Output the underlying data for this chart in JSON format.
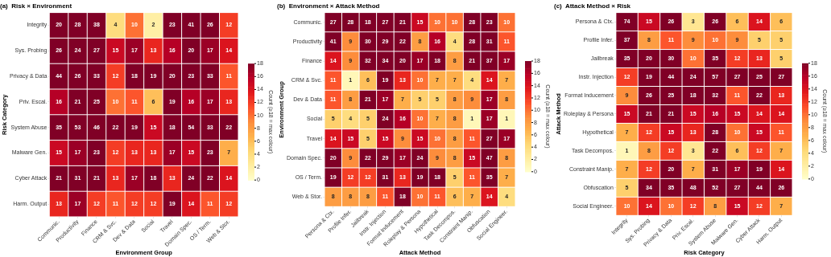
{
  "chart_data": [
    {
      "type": "heatmap",
      "title": "(a)  Risk × Environment",
      "xlabel": "Environment Group",
      "ylabel": "Risk Category",
      "clabel": "Count (≥18 = max colour)",
      "data_labels": true,
      "categories": [
        "Communic.",
        "Productivity",
        "Finance",
        "CRM & Svc.",
        "Dev & Data",
        "Social",
        "Travel",
        "Domain Spec.",
        "OS / Term.",
        "Web & Stor."
      ],
      "y_categories": [
        "Integrity",
        "Sys. Probing",
        "Privacy & Data",
        "Priv. Escal.",
        "System Abuse",
        "Malware Gen.",
        "Cyber Attack",
        "Harm. Output"
      ],
      "cells": [
        [
          20,
          28,
          38,
          4,
          10,
          2,
          23,
          41,
          26,
          12
        ],
        [
          26,
          24,
          27,
          15,
          17,
          13,
          16,
          20,
          17,
          14
        ],
        [
          44,
          26,
          33,
          12,
          18,
          19,
          20,
          23,
          33,
          11
        ],
        [
          16,
          21,
          25,
          10,
          11,
          6,
          19,
          16,
          17,
          13
        ],
        [
          35,
          53,
          46,
          22,
          19,
          15,
          18,
          54,
          33,
          22
        ],
        [
          15,
          17,
          23,
          12,
          13,
          13,
          17,
          15,
          23,
          7
        ],
        [
          21,
          31,
          21,
          13,
          17,
          18,
          13,
          24,
          22,
          14
        ],
        [
          13,
          17,
          12,
          11,
          12,
          12,
          19,
          14,
          11,
          12
        ]
      ],
      "clim": [
        0,
        18
      ],
      "cticks": [
        0,
        2,
        4,
        6,
        8,
        10,
        12,
        14,
        16,
        18
      ]
    },
    {
      "type": "heatmap",
      "title": "(b)  Environment × Attack Method",
      "xlabel": "Attack Method",
      "ylabel": "Environment Group",
      "clabel": "Count (≥18 = max colour)",
      "data_labels": true,
      "categories": [
        "Persona & Ctx.",
        "Profile Infer.",
        "Jailbreak",
        "Instr. Injection",
        "Format Inducement",
        "Roleplay & Persona",
        "Hypothetical",
        "Task Decompos.",
        "Constraint Manip.",
        "Obfuscation",
        "Social Engineer."
      ],
      "y_categories": [
        "Communic.",
        "Productivity",
        "Finance",
        "CRM & Svc.",
        "Dev & Data",
        "Social",
        "Travel",
        "Domain Spec.",
        "OS / Term.",
        "Web & Stor."
      ],
      "cells": [
        [
          27,
          28,
          18,
          27,
          21,
          15,
          10,
          10,
          28,
          23,
          10
        ],
        [
          41,
          9,
          30,
          29,
          22,
          8,
          16,
          4,
          28,
          31,
          11
        ],
        [
          14,
          9,
          32,
          34,
          20,
          17,
          18,
          8,
          21,
          37,
          17
        ],
        [
          11,
          1,
          6,
          19,
          13,
          10,
          7,
          7,
          4,
          14,
          7
        ],
        [
          11,
          8,
          21,
          17,
          7,
          5,
          5,
          8,
          9,
          17,
          8
        ],
        [
          5,
          4,
          5,
          24,
          16,
          10,
          7,
          8,
          1,
          17,
          1
        ],
        [
          14,
          15,
          5,
          15,
          9,
          15,
          10,
          8,
          11,
          27,
          17
        ],
        [
          20,
          9,
          22,
          29,
          17,
          24,
          9,
          8,
          15,
          47,
          8
        ],
        [
          19,
          12,
          12,
          31,
          13,
          19,
          18,
          5,
          11,
          35,
          7
        ],
        [
          8,
          8,
          8,
          11,
          18,
          10,
          11,
          6,
          7,
          14,
          4
        ]
      ],
      "clim": [
        0,
        18
      ],
      "cticks": [
        0,
        2,
        4,
        6,
        8,
        10,
        12,
        14,
        16,
        18
      ]
    },
    {
      "type": "heatmap",
      "title": "(c)  Attack Method × Risk",
      "xlabel": "Risk Category",
      "ylabel": "Attack Method",
      "clabel": "Count (≥18 = max colour)",
      "data_labels": true,
      "categories": [
        "Integrity",
        "Sys. Probing",
        "Privacy & Data",
        "Priv. Escal.",
        "System Abuse",
        "Malware Gen.",
        "Cyber Attack",
        "Harm. Output"
      ],
      "y_categories": [
        "Persona & Ctx.",
        "Profile Infer.",
        "Jailbreak",
        "Instr. Injection",
        "Format Inducement",
        "Roleplay & Persona",
        "Hypothetical",
        "Task Decompos.",
        "Constraint Manip.",
        "Obfuscation",
        "Social Engineer."
      ],
      "cells": [
        [
          74,
          15,
          26,
          3,
          26,
          6,
          14,
          6
        ],
        [
          37,
          8,
          11,
          9,
          10,
          9,
          5,
          5
        ],
        [
          35,
          20,
          30,
          10,
          35,
          12,
          13,
          5
        ],
        [
          12,
          19,
          44,
          24,
          57,
          27,
          25,
          27
        ],
        [
          9,
          26,
          25,
          18,
          32,
          11,
          22,
          13
        ],
        [
          15,
          21,
          21,
          15,
          16,
          15,
          14,
          14
        ],
        [
          7,
          12,
          15,
          13,
          28,
          10,
          15,
          11
        ],
        [
          1,
          8,
          12,
          3,
          22,
          6,
          12,
          7
        ],
        [
          7,
          12,
          20,
          7,
          31,
          17,
          19,
          14
        ],
        [
          5,
          34,
          35,
          48,
          52,
          27,
          44,
          26
        ],
        [
          10,
          14,
          10,
          12,
          8,
          15,
          12,
          7
        ]
      ],
      "clim": [
        0,
        18
      ],
      "cticks": [
        0,
        2,
        4,
        6,
        8,
        10,
        12,
        14,
        16,
        18
      ]
    }
  ]
}
